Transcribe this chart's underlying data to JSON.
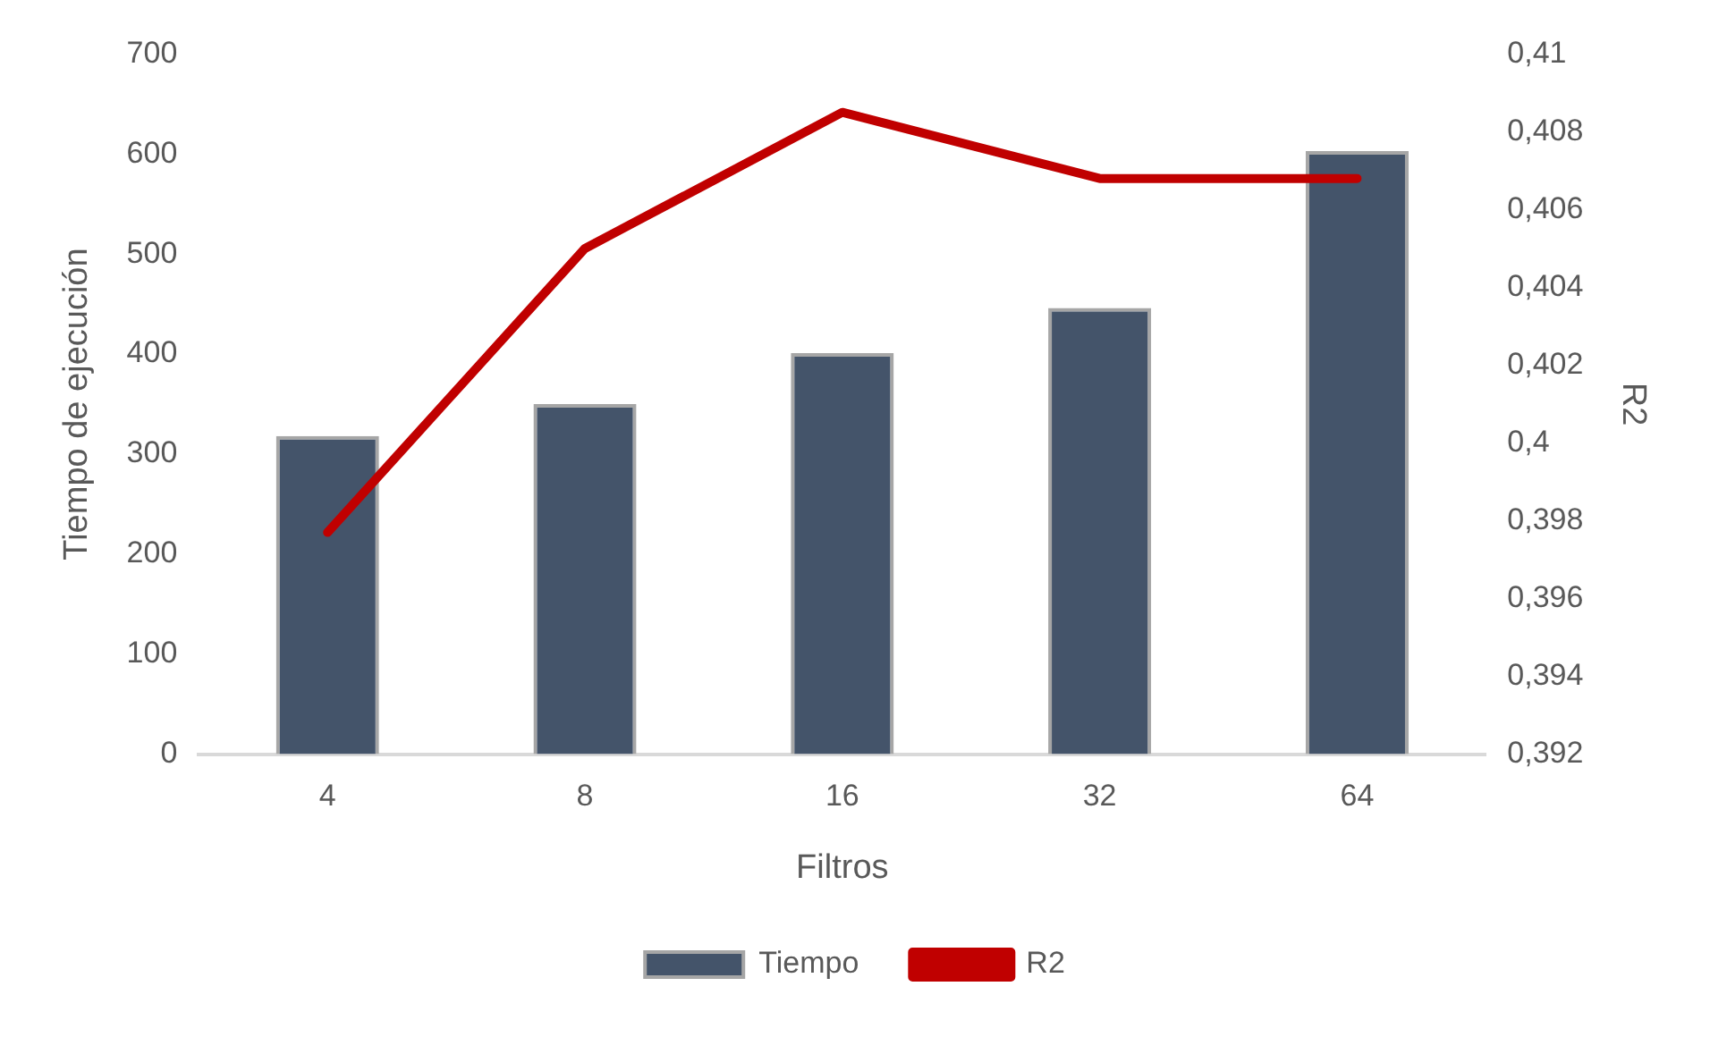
{
  "chart_data": {
    "type": "bar",
    "xlabel": "Filtros",
    "ylabel": "Tiempo de ejecución",
    "y2label": "R2",
    "categories": [
      "4",
      "8",
      "16",
      "32",
      "64"
    ],
    "series": [
      {
        "name": "Tiempo",
        "color": "#44546a",
        "values": [
          318,
          350,
          401,
          446,
          603
        ]
      },
      {
        "name": "R2",
        "type": "line",
        "axis": "y2",
        "color": "#c00000",
        "values": [
          0.3977,
          0.405,
          0.4085,
          0.4068,
          0.4068
        ]
      }
    ],
    "ylim": [
      0,
      700
    ],
    "yticks": [
      0,
      100,
      200,
      300,
      400,
      500,
      600,
      700
    ],
    "y2lim": [
      0.392,
      0.41
    ],
    "y2ticks": [
      {
        "value": 0.392,
        "label": "0,392"
      },
      {
        "value": 0.394,
        "label": "0,394"
      },
      {
        "value": 0.396,
        "label": "0,396"
      },
      {
        "value": 0.398,
        "label": "0,398"
      },
      {
        "value": 0.4,
        "label": "0,4"
      },
      {
        "value": 0.402,
        "label": "0,402"
      },
      {
        "value": 0.404,
        "label": "0,404"
      },
      {
        "value": 0.406,
        "label": "0,406"
      },
      {
        "value": 0.408,
        "label": "0,408"
      },
      {
        "value": 0.41,
        "label": "0,41"
      }
    ],
    "grid": false,
    "legend": "bottom",
    "marker": "none"
  }
}
